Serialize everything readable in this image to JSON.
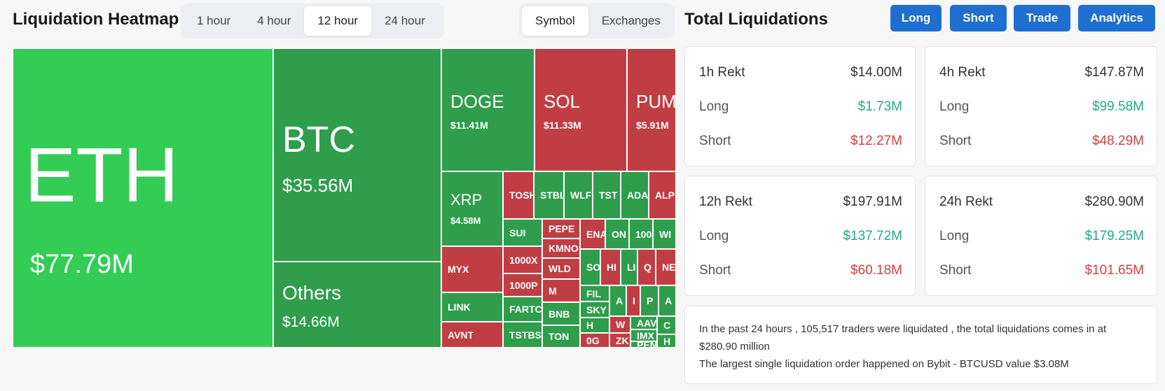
{
  "heatmap": {
    "title": "Liquidation Heatmap",
    "time_tabs": [
      "1 hour",
      "4 hour",
      "12 hour",
      "24 hour"
    ],
    "active_time_tab": "12 hour",
    "view_tabs": [
      "Symbol",
      "Exchanges"
    ],
    "active_view_tab": "Symbol",
    "large_tiles": [
      {
        "symbol": "ETH",
        "value": "$77.79M"
      },
      {
        "symbol": "BTC",
        "value": "$35.56M"
      },
      {
        "symbol": "Others",
        "value": "$14.66M"
      },
      {
        "symbol": "DOGE",
        "value": "$11.41M"
      },
      {
        "symbol": "SOL",
        "value": "$11.33M"
      },
      {
        "symbol": "PUMP",
        "value": "$5.91M"
      },
      {
        "symbol": "XRP",
        "value": "$4.58M"
      }
    ],
    "small_tiles": [
      "TOSH",
      "STBL",
      "WLFI",
      "TST",
      "ADA",
      "ALPI",
      "SUI",
      "PEPE",
      "ENA",
      "ON",
      "100",
      "WI",
      "MYX",
      "KMNO",
      "1000X",
      "SO",
      "HI",
      "LI",
      "Q",
      "NE",
      "WLD",
      "1000P",
      "FIL",
      "A",
      "I",
      "P",
      "A",
      "M",
      "SKY",
      "W",
      "AAV",
      "C",
      "LINK",
      "FARTC",
      "BNB",
      "H",
      "IMX",
      "AVNT",
      "TSTBS",
      "TON",
      "0G",
      "ZK",
      "PEN",
      "H"
    ],
    "colors": {
      "bright_green": "#33cc55",
      "green": "#2f9d4c",
      "red": "#c03e43"
    }
  },
  "totals": {
    "title": "Total Liquidations",
    "buttons": [
      "Long",
      "Short",
      "Trade",
      "Analytics"
    ],
    "cards": [
      {
        "label": "1h Rekt",
        "total": "$14.00M",
        "long_label": "Long",
        "long": "$1.73M",
        "short_label": "Short",
        "short": "$12.27M"
      },
      {
        "label": "4h Rekt",
        "total": "$147.87M",
        "long_label": "Long",
        "long": "$99.58M",
        "short_label": "Short",
        "short": "$48.29M"
      },
      {
        "label": "12h Rekt",
        "total": "$197.91M",
        "long_label": "Long",
        "long": "$137.72M",
        "short_label": "Short",
        "short": "$60.18M"
      },
      {
        "label": "24h Rekt",
        "total": "$280.90M",
        "long_label": "Long",
        "long": "$179.25M",
        "short_label": "Short",
        "short": "$101.65M"
      }
    ],
    "summary_line1": "In the past 24 hours , 105,517 traders were liquidated , the total liquidations comes in at $280.90 million",
    "summary_line2": "The largest single liquidation order happened on Bybit - BTCUSD value $3.08M",
    "colors": {
      "button": "#1f6fd0",
      "long": "#25a88b",
      "short": "#d43f45"
    }
  }
}
